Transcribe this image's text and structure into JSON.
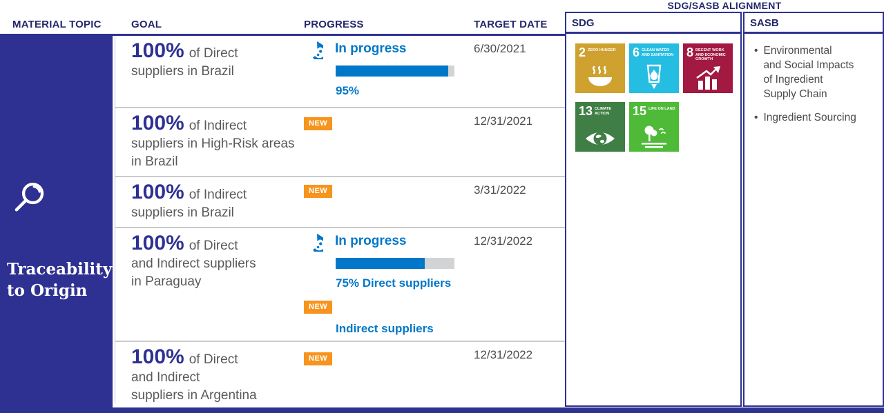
{
  "header": {
    "material_topic": "MATERIAL TOPIC",
    "goal": "GOAL",
    "progress": "PROGRESS",
    "target_date": "TARGET DATE",
    "alignment": "SDG/SASB ALIGNMENT",
    "sdg": "SDG",
    "sasb": "SASB"
  },
  "topic": {
    "title": "Traceability to Origin"
  },
  "badge_label": "NEW",
  "rows": [
    {
      "percent": "100%",
      "goal": "of Direct\nsuppliers  in Brazil",
      "status": "In progress",
      "bar_percent": 95,
      "bar_label": "95%",
      "date": "6/30/2021",
      "new": false
    },
    {
      "percent": "100%",
      "goal": "of Indirect\nsuppliers in High-Risk areas\nin Brazil",
      "date": "12/31/2021",
      "new": true
    },
    {
      "percent": "100%",
      "goal": "of Indirect\nsuppliers in Brazil",
      "date": "3/31/2022",
      "new": true
    },
    {
      "percent": "100%",
      "goal": "of Direct\nand Indirect suppliers\nin Paraguay",
      "status": "In progress",
      "bar_percent": 75,
      "bar_label": "75% Direct suppliers",
      "extra_label": "Indirect suppliers",
      "date": "12/31/2022",
      "new": true
    },
    {
      "percent": "100%",
      "goal": "of Direct\nand Indirect\nsuppliers in Argentina",
      "date": "12/31/2022",
      "new": true
    }
  ],
  "sdg_tiles": [
    {
      "number": "2",
      "label": "Zero Hunger",
      "color": "#CFA12E"
    },
    {
      "number": "6",
      "label": "Clean Water and Sanitation",
      "color": "#26BDE2"
    },
    {
      "number": "8",
      "label": "Decent Work and Economic Growth",
      "color": "#A21942"
    },
    {
      "number": "13",
      "label": "Climate Action",
      "color": "#3F7E44"
    },
    {
      "number": "15",
      "label": "Life on Land",
      "color": "#4FBA38"
    }
  ],
  "sasb": {
    "items": [
      "Environmental\nand Social Impacts\nof Ingredient\nSupply Chain",
      "Ingredient Sourcing"
    ]
  },
  "colors": {
    "navy": "#2E3192",
    "blue": "#0077C8",
    "orange": "#F7941D",
    "gray_text": "#58595B"
  }
}
